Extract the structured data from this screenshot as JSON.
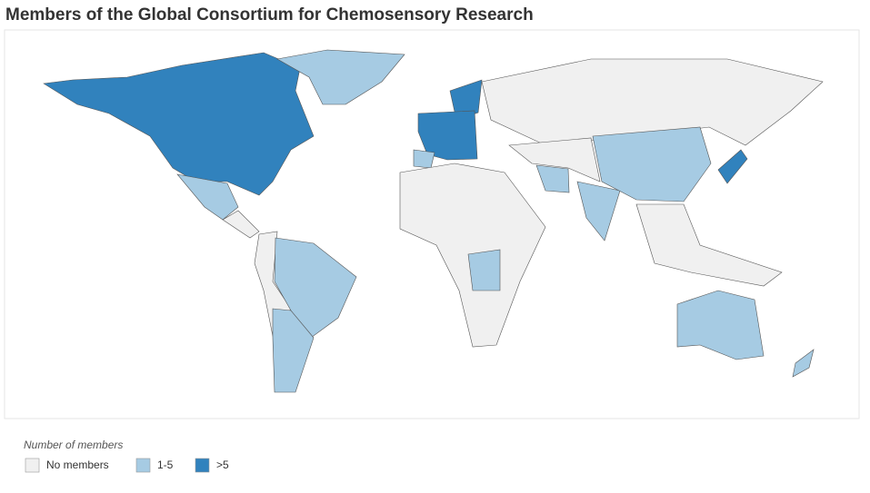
{
  "title": "Members of the Global Consortium for Chemosensory Research",
  "legend": {
    "title": "Number of members",
    "items": [
      {
        "label": "No members",
        "color": "#f0f0f0"
      },
      {
        "label": "1-5",
        "color": "#a6cbe3"
      },
      {
        "label": ">5",
        "color": "#3182bd"
      }
    ]
  }
}
